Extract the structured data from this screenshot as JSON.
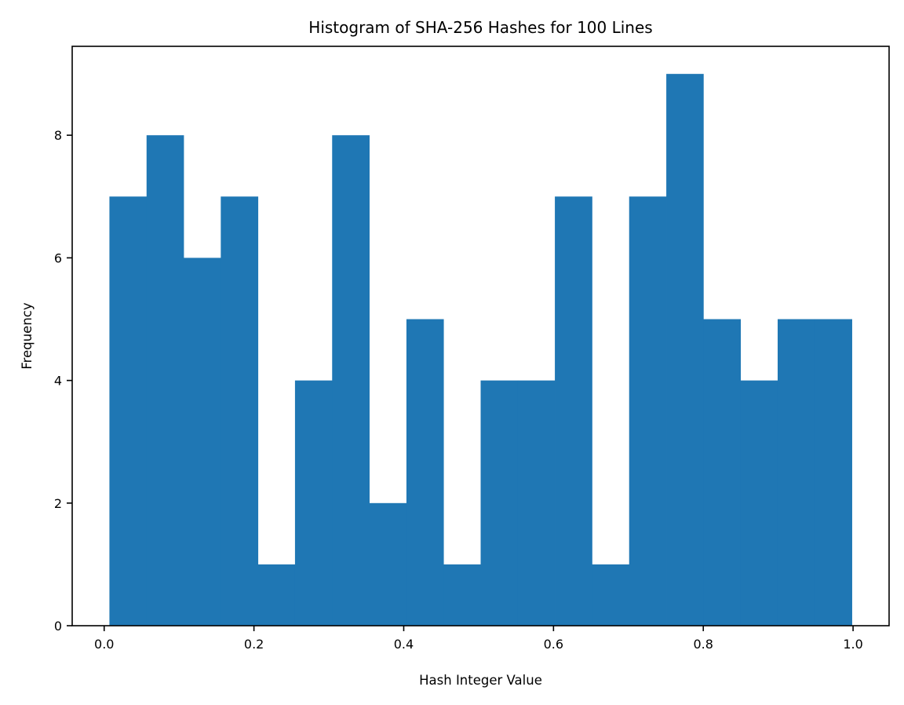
{
  "chart_data": {
    "type": "bar",
    "title": "Histogram of SHA-256 Hashes for 100 Lines",
    "xlabel": "Hash Integer Value",
    "ylabel": "Frequency",
    "bin_edges": [
      0.007,
      0.0566,
      0.1061,
      0.1557,
      0.2053,
      0.2548,
      0.3044,
      0.354,
      0.4036,
      0.4531,
      0.5027,
      0.5523,
      0.6018,
      0.6514,
      0.701,
      0.7506,
      0.8001,
      0.8497,
      0.8993,
      0.9488,
      0.9984
    ],
    "values": [
      7,
      8,
      6,
      7,
      1,
      4,
      8,
      2,
      5,
      1,
      4,
      4,
      7,
      1,
      7,
      9,
      5,
      4,
      5,
      5
    ],
    "xlim": [
      -0.0427,
      1.0481
    ],
    "ylim": [
      0,
      9.45
    ],
    "xticks": [
      0.0,
      0.2,
      0.4,
      0.6,
      0.8,
      1.0
    ],
    "xtick_labels": [
      "0.0",
      "0.2",
      "0.4",
      "0.6",
      "0.8",
      "1.0"
    ],
    "yticks": [
      0,
      2,
      4,
      6,
      8
    ],
    "ytick_labels": [
      "0",
      "2",
      "4",
      "6",
      "8"
    ],
    "bar_color": "#1f77b4",
    "grid": false,
    "legend": "none"
  }
}
